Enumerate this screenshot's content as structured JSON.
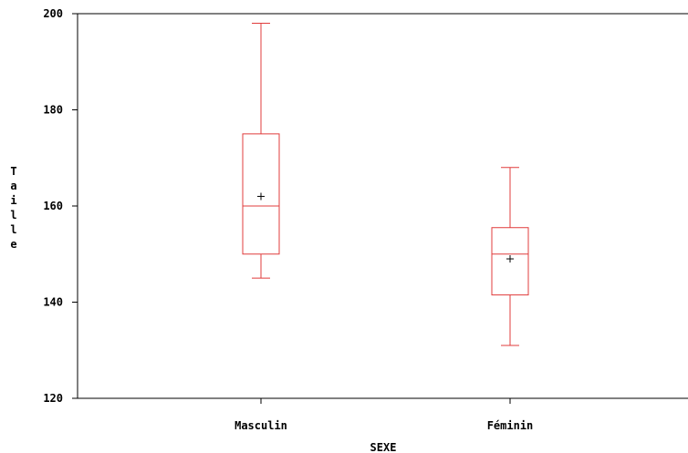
{
  "chart_data": {
    "type": "box",
    "title": "",
    "xlabel": "SEXE",
    "ylabel": "Taille",
    "ylim": [
      120,
      200
    ],
    "yticks": [
      120,
      140,
      160,
      180,
      200
    ],
    "categories": [
      "Masculin",
      "Féminin"
    ],
    "boxes": [
      {
        "category": "Masculin",
        "min": 145,
        "q1": 150,
        "median": 160,
        "q3": 175,
        "max": 198,
        "mean": 162
      },
      {
        "category": "Féminin",
        "min": 131,
        "q1": 141.5,
        "median": 150,
        "q3": 155.5,
        "max": 168,
        "mean": 149
      }
    ],
    "box_color": "#e03c3c",
    "axis_color": "#000000",
    "grid": false,
    "legend": "none"
  }
}
